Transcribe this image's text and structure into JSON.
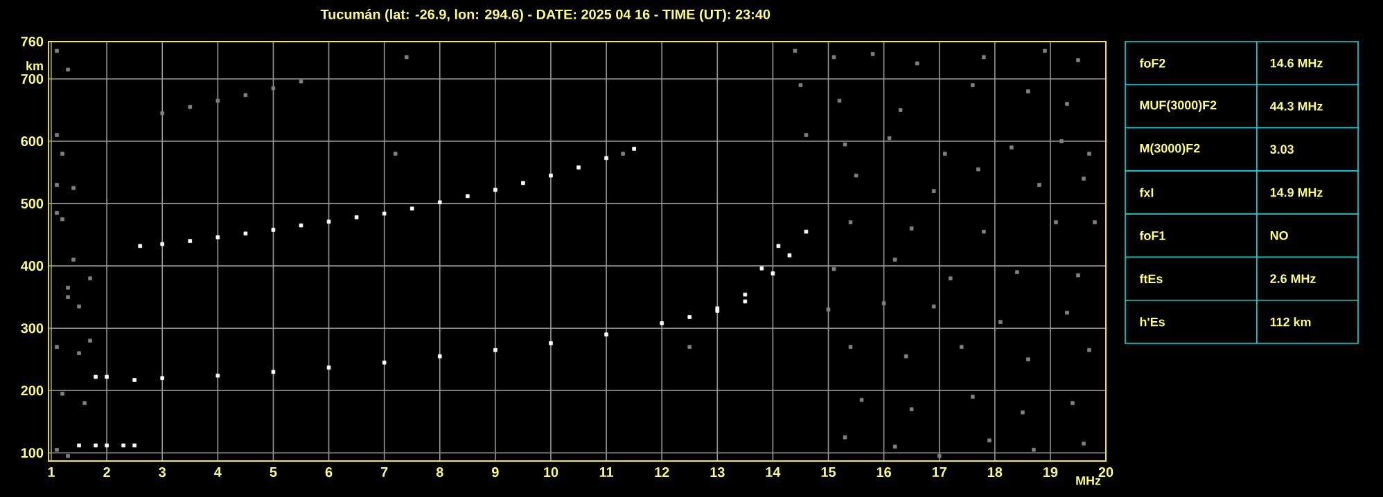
{
  "chart_data": [
    {
      "type": "scatter",
      "title": "Tucumán (lat: -26.9, lon: 294.6) - DATE: 2025 04 16 - TIME (UT): 23:40",
      "xlabel": "MHz",
      "ylabel": "km",
      "xlim": [
        0.95,
        20
      ],
      "ylim": [
        87,
        760
      ],
      "xticks": [
        1,
        2,
        3,
        4,
        5,
        6,
        7,
        8,
        9,
        10,
        11,
        12,
        13,
        14,
        15,
        16,
        17,
        18,
        19,
        20
      ],
      "yticks": [
        100,
        200,
        300,
        400,
        500,
        600,
        700,
        760
      ],
      "grid": true,
      "marker": "square",
      "series": [
        {
          "color": "#ffffff",
          "x": [
            1.8,
            2,
            2.5,
            3,
            4,
            5,
            6,
            7,
            8,
            9,
            10,
            11,
            12,
            12.5,
            13,
            13.5,
            13.8,
            14.1
          ],
          "values": [
            222,
            222,
            217,
            220,
            224,
            230,
            237,
            245,
            255,
            265,
            276,
            290,
            308,
            318,
            332,
            354,
            396,
            432
          ]
        },
        {
          "color": "#ffffff",
          "x": [
            13,
            13.5,
            14,
            14.3,
            14.6
          ],
          "values": [
            328,
            343,
            388,
            417,
            455
          ]
        },
        {
          "color": "#ffffff",
          "x": [
            1.5,
            1.8,
            2,
            2.3,
            2.5
          ],
          "values": [
            112,
            112,
            112,
            112,
            112
          ]
        },
        {
          "color": "#ffffff",
          "x": [
            2.6,
            3,
            3.5,
            4,
            4.5,
            5,
            5.5,
            6,
            6.5,
            7,
            7.5,
            8,
            8.5,
            9,
            9.5,
            10,
            10.5,
            11,
            11.5
          ],
          "values": [
            432,
            435,
            440,
            446,
            452,
            458,
            465,
            471,
            478,
            484,
            492,
            502,
            512,
            522,
            533,
            545,
            558,
            573,
            588
          ]
        },
        {
          "color": "#808080",
          "x": [
            3,
            3.5,
            4,
            4.5,
            5,
            5.5
          ],
          "values": [
            645,
            655,
            665,
            674,
            685,
            696
          ]
        },
        {
          "color": "#808080",
          "x": [
            14.4,
            15.1,
            15.8,
            16.6,
            17.8,
            18.9,
            19.5,
            14.5,
            15.2,
            16.3,
            17.6,
            18.6,
            19.3,
            14.6,
            15.3,
            16.1,
            17.1,
            18.3,
            19.2,
            19.7,
            15.5,
            16.9,
            17.7,
            18.8,
            19.6,
            15.4,
            16.5,
            17.8,
            19.1,
            19.8,
            15.1,
            16.2,
            17.2,
            18.4,
            19.5,
            15.0,
            16.0,
            16.9,
            18.1,
            19.3,
            15.4,
            16.4,
            17.4,
            18.6,
            19.7,
            15.6,
            16.5,
            17.6,
            18.5,
            19.4,
            15.3,
            16.2,
            17.0,
            17.9,
            18.7,
            19.6,
            1.1,
            1.3,
            1.1,
            1.2,
            1.1,
            1.4,
            1.1,
            1.2,
            1.4,
            1.3,
            1.3,
            1.5,
            1.7,
            1.7,
            1.1,
            1.5,
            1.2,
            1.6,
            1.1,
            1.3,
            11.3,
            7.2,
            7.4,
            12.5
          ],
          "values": [
            745,
            735,
            740,
            725,
            735,
            745,
            730,
            690,
            665,
            650,
            690,
            680,
            660,
            610,
            595,
            605,
            580,
            590,
            600,
            580,
            545,
            520,
            555,
            530,
            540,
            470,
            460,
            455,
            470,
            470,
            395,
            410,
            380,
            390,
            385,
            330,
            340,
            335,
            310,
            325,
            270,
            255,
            270,
            250,
            265,
            185,
            170,
            190,
            165,
            180,
            125,
            110,
            95,
            120,
            105,
            115,
            745,
            715,
            610,
            580,
            530,
            525,
            485,
            475,
            410,
            365,
            350,
            335,
            380,
            280,
            270,
            260,
            195,
            180,
            105,
            95,
            580,
            580,
            735,
            270
          ]
        }
      ]
    },
    {
      "type": "other",
      "annotations": [
        "foF2",
        "14.6 MHz",
        "MUF(3000)F2",
        "44.3 MHz",
        "M(3000)F2",
        "3.03",
        "fxI",
        "14.9 MHz",
        "foF1",
        "NO",
        "ftEs",
        "2.6 MHz",
        "h'Es",
        "112 km"
      ]
    }
  ]
}
